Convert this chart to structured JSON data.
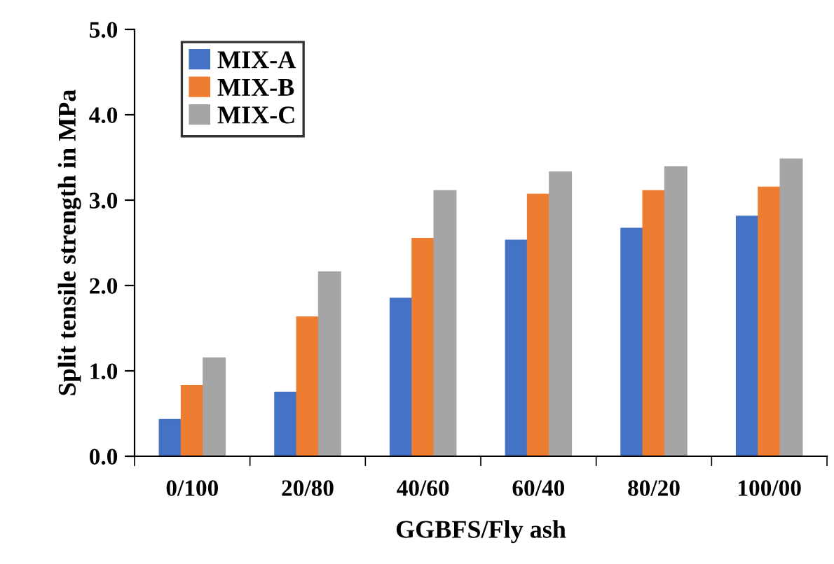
{
  "chart_data": {
    "type": "bar",
    "xlabel": "GGBFS/Fly ash",
    "ylabel": "Split tensile strength in MPa",
    "categories": [
      "0/100",
      "20/80",
      "40/60",
      "60/40",
      "80/20",
      "100/00"
    ],
    "series": [
      {
        "name": "MIX-A",
        "color": "#4472c4",
        "values": [
          0.43,
          0.75,
          1.85,
          2.53,
          2.67,
          2.81
        ]
      },
      {
        "name": "MIX-B",
        "color": "#ed7d31",
        "values": [
          0.83,
          1.63,
          2.55,
          3.07,
          3.11,
          3.15
        ]
      },
      {
        "name": "MIX-C",
        "color": "#a5a5a5",
        "values": [
          1.15,
          2.16,
          3.11,
          3.33,
          3.39,
          3.48
        ]
      }
    ],
    "ylim": [
      0,
      5
    ],
    "yticks": [
      {
        "value": 0,
        "label": "0.0"
      },
      {
        "value": 1,
        "label": "1.0"
      },
      {
        "value": 2,
        "label": "2.0"
      },
      {
        "value": 3,
        "label": "3.0"
      },
      {
        "value": 4,
        "label": "4.0"
      },
      {
        "value": 5,
        "label": "5.0"
      }
    ],
    "grid": false,
    "legend": "top left"
  }
}
